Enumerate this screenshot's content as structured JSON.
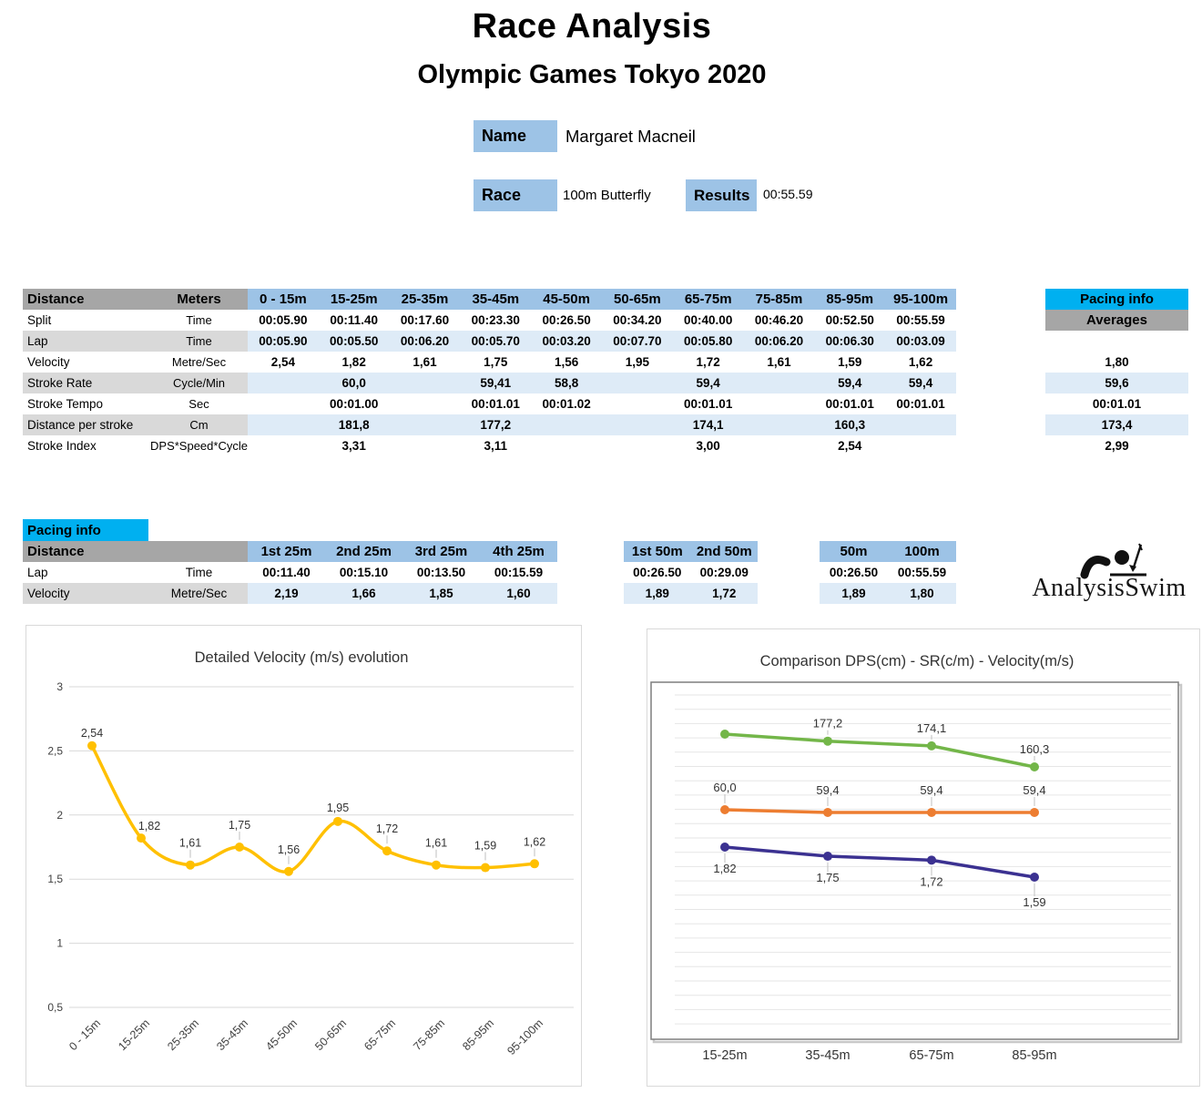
{
  "header": {
    "title": "Race Analysis",
    "subtitle": "Olympic Games Tokyo 2020",
    "name_label": "Name",
    "name_value": "Margaret Macneil",
    "race_label": "Race",
    "race_value": "100m Butterfly",
    "results_label": "Results",
    "results_value": "00:55.59"
  },
  "colors": {
    "header_blue": "#9DC3E6",
    "row_blue": "#DEEBF7",
    "header_gray": "#A6A6A6",
    "row_gray": "#D9D9D9",
    "cyan": "#00B0F0",
    "velocity_line": "#FFC000",
    "dps_line": "#73B649",
    "sr_line": "#ED7D31",
    "velocity_comparison_line": "#3B3191"
  },
  "main_table": {
    "corner_label": "Distance",
    "corner_unit": "Meters",
    "columns": [
      "0 - 15m",
      "15-25m",
      "25-35m",
      "35-45m",
      "45-50m",
      "50-65m",
      "65-75m",
      "75-85m",
      "85-95m",
      "95-100m"
    ],
    "rows": [
      {
        "label": "Split",
        "unit": "Time",
        "shaded": false,
        "cells": [
          "00:05.90",
          "00:11.40",
          "00:17.60",
          "00:23.30",
          "00:26.50",
          "00:34.20",
          "00:40.00",
          "00:46.20",
          "00:52.50",
          "00:55.59"
        ],
        "average": ""
      },
      {
        "label": "Lap",
        "unit": "Time",
        "shaded": true,
        "cells": [
          "00:05.90",
          "00:05.50",
          "00:06.20",
          "00:05.70",
          "00:03.20",
          "00:07.70",
          "00:05.80",
          "00:06.20",
          "00:06.30",
          "00:03.09"
        ],
        "average": ""
      },
      {
        "label": "Velocity",
        "unit": "Metre/Sec",
        "shaded": false,
        "cells": [
          "2,54",
          "1,82",
          "1,61",
          "1,75",
          "1,56",
          "1,95",
          "1,72",
          "1,61",
          "1,59",
          "1,62"
        ],
        "average": "1,80"
      },
      {
        "label": "Stroke Rate",
        "unit": "Cycle/Min",
        "shaded": true,
        "cells": [
          "",
          "60,0",
          "",
          "59,41",
          "58,8",
          "",
          "59,4",
          "",
          "59,4",
          "59,4"
        ],
        "average": "59,6"
      },
      {
        "label": "Stroke Tempo",
        "unit": "Sec",
        "shaded": false,
        "cells": [
          "",
          "00:01.00",
          "",
          "00:01.01",
          "00:01.02",
          "",
          "00:01.01",
          "",
          "00:01.01",
          "00:01.01"
        ],
        "average": "00:01.01"
      },
      {
        "label": "Distance per stroke",
        "unit": "Cm",
        "shaded": true,
        "cells": [
          "",
          "181,8",
          "",
          "177,2",
          "",
          "",
          "174,1",
          "",
          "160,3",
          ""
        ],
        "average": "173,4"
      },
      {
        "label": "Stroke Index",
        "unit": "DPS*Speed*Cycle",
        "shaded": false,
        "cells": [
          "",
          "3,31",
          "",
          "3,11",
          "",
          "",
          "3,00",
          "",
          "2,54",
          ""
        ],
        "average": "2,99"
      }
    ]
  },
  "averages_panel": {
    "title": "Pacing info",
    "subtitle": "Averages"
  },
  "pacing_table": {
    "title": "Pacing info",
    "distance_label": "Distance",
    "row_labels": [
      {
        "label": "Lap",
        "unit": "Time"
      },
      {
        "label": "Velocity",
        "unit": "Metre/Sec"
      }
    ],
    "groups": [
      {
        "columns": [
          "1st 25m",
          "2nd 25m",
          "3rd 25m",
          "4th 25m"
        ],
        "lap": [
          "00:11.40",
          "00:15.10",
          "00:13.50",
          "00:15.59"
        ],
        "velocity": [
          "2,19",
          "1,66",
          "1,85",
          "1,60"
        ]
      },
      {
        "columns": [
          "1st 50m",
          "2nd 50m"
        ],
        "lap": [
          "00:26.50",
          "00:29.09"
        ],
        "velocity": [
          "1,89",
          "1,72"
        ]
      },
      {
        "columns": [
          "50m",
          "100m"
        ],
        "lap": [
          "00:26.50",
          "00:55.59"
        ],
        "velocity": [
          "1,89",
          "1,80"
        ]
      }
    ]
  },
  "logo": {
    "text": "AnalysisSwim"
  },
  "chart_data": [
    {
      "type": "line",
      "title": "Detailed Velocity (m/s)  evolution",
      "categories": [
        "0 - 15m",
        "15-25m",
        "25-35m",
        "35-45m",
        "45-50m",
        "50-65m",
        "65-75m",
        "75-85m",
        "85-95m",
        "95-100m"
      ],
      "series": [
        {
          "name": "Velocity (m/s)",
          "color": "#FFC000",
          "values": [
            2.54,
            1.82,
            1.61,
            1.75,
            1.56,
            1.95,
            1.72,
            1.61,
            1.59,
            1.62
          ],
          "labels": [
            "2,54",
            "1,82",
            "1,61",
            "1,75",
            "1,56",
            "1,95",
            "1,72",
            "1,61",
            "1,59",
            "1,62"
          ]
        }
      ],
      "xlabel": "",
      "ylabel": "",
      "ylim": [
        0.5,
        3
      ],
      "ytick_values": [
        3,
        2.5,
        2,
        1.5,
        1,
        0.5
      ],
      "ytick_labels": [
        "3",
        "2,5",
        "2",
        "1,5",
        "1",
        "0,5"
      ],
      "grid": true,
      "legend": "none"
    },
    {
      "type": "line",
      "title": "Comparison DPS(cm) - SR(c/m) - Velocity(m/s)",
      "categories": [
        "15-25m",
        "35-45m",
        "65-75m",
        "85-95m"
      ],
      "series": [
        {
          "name": "DPS (cm)",
          "color": "#73B649",
          "values": [
            181.8,
            177.2,
            174.1,
            160.3
          ],
          "labels": [
            "",
            "177,2",
            "174,1",
            "160,3"
          ],
          "label_position": "above"
        },
        {
          "name": "SR (c/m)",
          "color": "#ED7D31",
          "values": [
            60.0,
            59.4,
            59.4,
            59.4
          ],
          "labels": [
            "60,0",
            "59,4",
            "59,4",
            "59,4"
          ],
          "label_position": "above"
        },
        {
          "name": "Velocity (m/s)",
          "color": "#3B3191",
          "values": [
            1.82,
            1.75,
            1.72,
            1.59
          ],
          "labels": [
            "1,82",
            "1,75",
            "1,72",
            "1,59"
          ],
          "label_position": "below"
        }
      ],
      "xlabel": "",
      "ylabel": "",
      "grid": true,
      "legend": "none"
    }
  ]
}
